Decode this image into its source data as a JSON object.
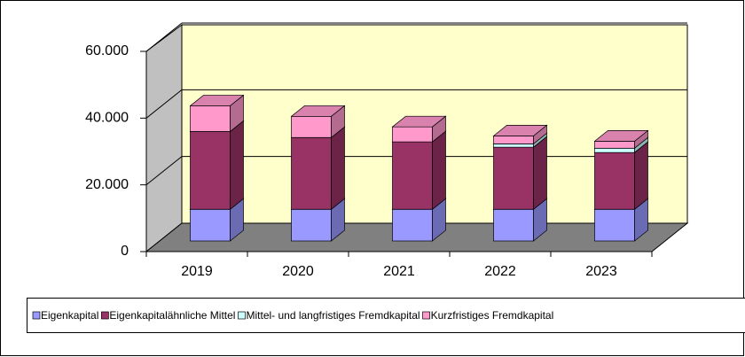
{
  "chart_data": {
    "type": "bar3d_stacked",
    "categories": [
      "2019",
      "2020",
      "2021",
      "2022",
      "2023"
    ],
    "series": [
      {
        "name": "Eigenkapital",
        "color": "#9999ff",
        "values": [
          9500,
          9500,
          9500,
          9500,
          9500
        ]
      },
      {
        "name": "Eigenkapitalähnliche Mittel",
        "color": "#993366",
        "values": [
          23300,
          21500,
          20200,
          18600,
          17000
        ]
      },
      {
        "name": "Mittel- und langfristiges Fremdkapital",
        "color": "#ccffff",
        "values": [
          0,
          0,
          0,
          1000,
          1300
        ]
      },
      {
        "name": "Kurzfristiges Fremdkapital",
        "color": "#ff99cc",
        "values": [
          7700,
          6350,
          4500,
          2400,
          2100
        ]
      }
    ],
    "ylim": [
      0,
      60000
    ],
    "yticks": [
      0,
      {
        "value": 20000,
        "label": "20.000"
      },
      {
        "value": 40000,
        "label": "40.000"
      },
      {
        "value": 60000,
        "label": "60.000"
      }
    ],
    "grid": true,
    "legend": "bottom"
  }
}
